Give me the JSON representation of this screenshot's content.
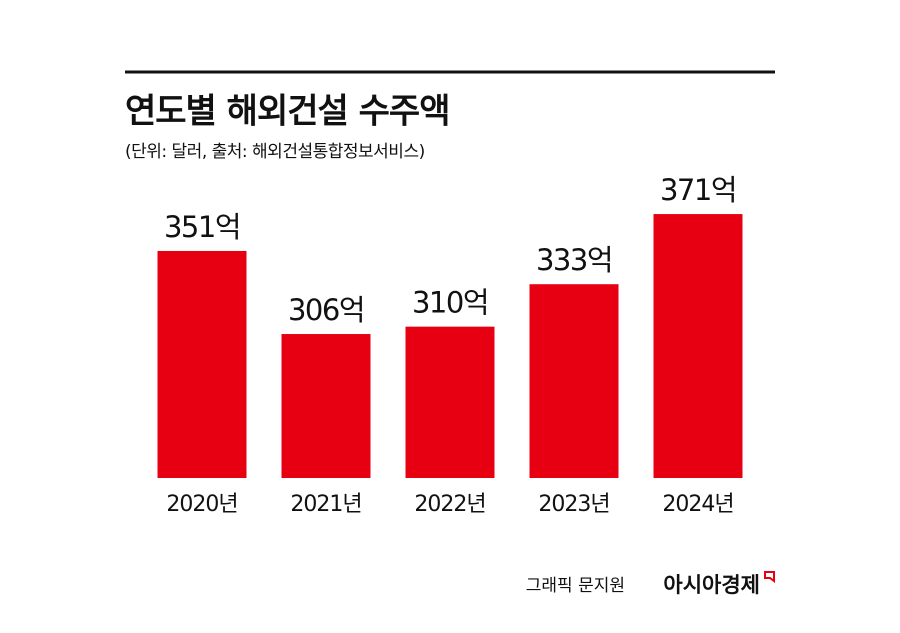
{
  "chart_data": {
    "type": "bar",
    "title": "연도별 해외건설 수주액",
    "subtitle": "(단위: 달러, 출처: 해외건설통합정보서비스)",
    "categories": [
      "2020년",
      "2021년",
      "2022년",
      "2023년",
      "2024년"
    ],
    "values": [
      351,
      306,
      310,
      333,
      371
    ],
    "value_labels": [
      "351억",
      "306억",
      "310억",
      "333억",
      "371억"
    ],
    "color": "#e60012",
    "ylim": [
      228,
      390
    ],
    "credit": "그래픽 문지원",
    "source_brand": "아시아경제"
  }
}
